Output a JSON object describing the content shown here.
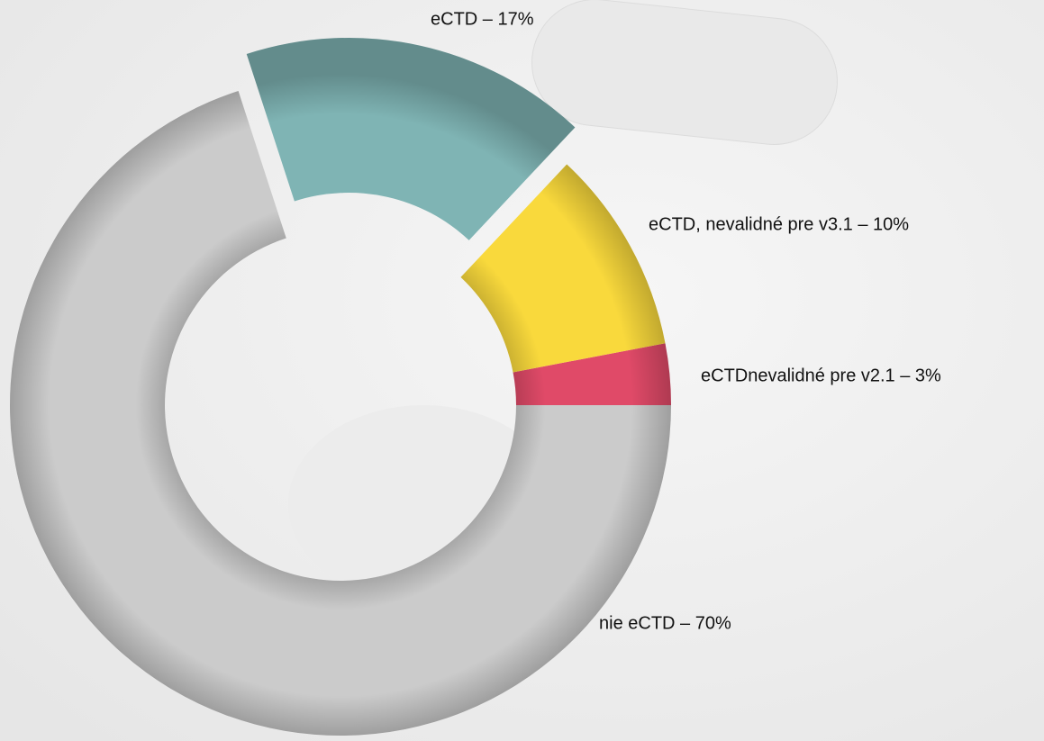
{
  "chart_data": {
    "type": "donut",
    "categories": [
      "eCTDnevalidné pre v2.1 – 3%",
      "eCTD, nevalidné pre v3.1 – 10%",
      "eCTD – 17%",
      "nie eCTD – 70%"
    ],
    "values": [
      3,
      10,
      17,
      70
    ],
    "colors": [
      "#e04a68",
      "#f9d93c",
      "#7fb4b4",
      "#cbcbcb"
    ],
    "explode": [
      false,
      false,
      true,
      false
    ]
  }
}
